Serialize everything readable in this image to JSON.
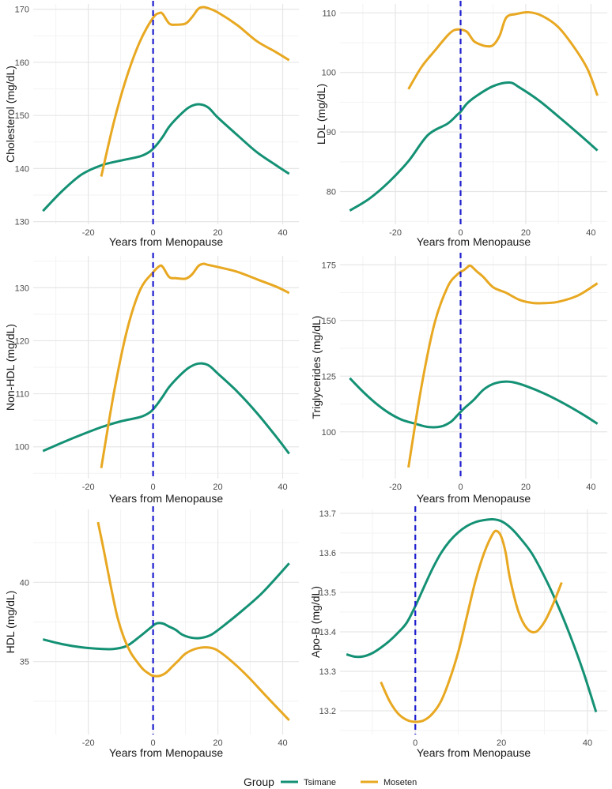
{
  "colors": {
    "Tsimane": "#149174",
    "Moseten": "#E8A821",
    "menopause_line": "#1f1fcf",
    "grid_major": "#e6e6e6",
    "grid_minor": "#f3f3f3"
  },
  "legend": {
    "title": "Group",
    "items": [
      "Tsimane",
      "Moseten"
    ],
    "position": "bottom"
  },
  "chart_data": [
    {
      "type": "line",
      "title": "",
      "xlabel": "Years from Menopause",
      "ylabel": "Cholesterol (mg/dL)",
      "xlim": [
        -37,
        45
      ],
      "ylim": [
        129.5,
        171
      ],
      "xticks": [
        -20,
        0,
        20,
        40
      ],
      "xtick_labels": [
        "-20",
        "0",
        "20",
        "40"
      ],
      "yticks": [
        130,
        140,
        150,
        160,
        170
      ],
      "ytick_labels": [
        "130",
        "140",
        "150",
        "160",
        "170"
      ],
      "vline_x": 0,
      "grid": true,
      "series": [
        {
          "name": "Tsimane",
          "x": [
            -34,
            -28,
            -22,
            -16,
            -10,
            -4,
            -1,
            1,
            3,
            5,
            8,
            11,
            14,
            17,
            20,
            26,
            32,
            38,
            42
          ],
          "y": [
            132,
            135.8,
            138.9,
            140.6,
            141.5,
            142.3,
            143.2,
            144.4,
            146,
            147.9,
            149.9,
            151.5,
            152.1,
            151.5,
            149.6,
            146.3,
            143.1,
            140.6,
            139
          ]
        },
        {
          "name": "Moseten",
          "x": [
            -16,
            -12,
            -8,
            -4,
            0,
            2,
            3,
            5,
            7,
            10,
            12,
            14,
            15.5,
            17,
            20,
            26,
            32,
            38,
            42
          ],
          "y": [
            138.5,
            149,
            157.5,
            164,
            168.4,
            169.3,
            169.1,
            167.3,
            167.1,
            167.3,
            168.5,
            170.1,
            170.4,
            170.2,
            169.4,
            167,
            164,
            161.9,
            160.4
          ]
        }
      ]
    },
    {
      "type": "line",
      "title": "",
      "xlabel": "Years from Menopause",
      "ylabel": "LDL (mg/dL)",
      "xlim": [
        -37,
        45
      ],
      "ylim": [
        74.5,
        111.5
      ],
      "xticks": [
        -20,
        0,
        20,
        40
      ],
      "xtick_labels": [
        "-20",
        "0",
        "20",
        "40"
      ],
      "yticks": [
        80,
        90,
        100,
        110
      ],
      "ytick_labels": [
        "80",
        "90",
        "100",
        "110"
      ],
      "vline_x": 0,
      "grid": true,
      "series": [
        {
          "name": "Tsimane",
          "x": [
            -34,
            -28,
            -22,
            -16,
            -10,
            -4,
            -1,
            0,
            2,
            5,
            10,
            15,
            18,
            24,
            30,
            36,
            42
          ],
          "y": [
            76.8,
            78.8,
            81.6,
            85.1,
            89.5,
            91.4,
            92.9,
            93.4,
            94.8,
            96.1,
            97.7,
            98.3,
            97.5,
            95.3,
            92.6,
            89.8,
            86.9
          ]
        },
        {
          "name": "Moseten",
          "x": [
            -16,
            -12,
            -8,
            -4,
            -2,
            0,
            2,
            4,
            6,
            8,
            10,
            12,
            14,
            17,
            21,
            25,
            30,
            35,
            39,
            42
          ],
          "y": [
            97.2,
            100.9,
            103.6,
            106.2,
            107.1,
            107.2,
            106.8,
            105.3,
            104.7,
            104.4,
            104.6,
            106.2,
            109.2,
            109.8,
            110.1,
            109.5,
            107.6,
            104.1,
            100.5,
            96.1
          ]
        }
      ]
    },
    {
      "type": "line",
      "title": "",
      "xlabel": "Years from Menopause",
      "ylabel": "Non-HDL (mg/dL)",
      "xlim": [
        -37,
        45
      ],
      "ylim": [
        94,
        136
      ],
      "xticks": [
        -20,
        0,
        20,
        40
      ],
      "xtick_labels": [
        "-20",
        "0",
        "20",
        "40"
      ],
      "yticks": [
        100,
        110,
        120,
        130
      ],
      "ytick_labels": [
        "100",
        "110",
        "120",
        "130"
      ],
      "vline_x": 0,
      "grid": true,
      "series": [
        {
          "name": "Tsimane",
          "x": [
            -34,
            -28,
            -22,
            -16,
            -10,
            -4,
            -1,
            1,
            3,
            5,
            8,
            11,
            14,
            17,
            20,
            26,
            32,
            38,
            42
          ],
          "y": [
            99.2,
            100.8,
            102.3,
            103.7,
            104.8,
            105.6,
            106.5,
            107.8,
            109.5,
            111.3,
            113.3,
            114.9,
            115.7,
            115.4,
            113.8,
            110.4,
            106.4,
            101.9,
            98.7
          ]
        },
        {
          "name": "Moseten",
          "x": [
            -16,
            -12,
            -8,
            -4,
            0,
            2,
            3,
            5,
            7,
            10,
            12,
            14,
            15.5,
            17,
            20,
            26,
            32,
            38,
            42
          ],
          "y": [
            96,
            110.5,
            122.1,
            129.6,
            132.9,
            134.1,
            133.9,
            132,
            131.8,
            131.7,
            132.5,
            134.1,
            134.5,
            134.3,
            133.9,
            133,
            131.6,
            130.2,
            129
          ]
        }
      ]
    },
    {
      "type": "line",
      "title": "",
      "xlabel": "Years from Menopause",
      "ylabel": "Triglycerides (mg/dL)",
      "xlim": [
        -37,
        45
      ],
      "ylim": [
        79,
        179
      ],
      "xticks": [
        -20,
        0,
        20,
        40
      ],
      "xtick_labels": [
        "-20",
        "0",
        "20",
        "40"
      ],
      "yticks": [
        100,
        125,
        150,
        175
      ],
      "ytick_labels": [
        "100",
        "125",
        "150",
        "175"
      ],
      "vline_x": 0,
      "grid": true,
      "series": [
        {
          "name": "Tsimane",
          "x": [
            -34,
            -30,
            -26,
            -22,
            -18,
            -14,
            -10,
            -6,
            -3,
            -1,
            1,
            4,
            7,
            10,
            13,
            16,
            20,
            26,
            32,
            38,
            42
          ],
          "y": [
            124.1,
            118.1,
            112.8,
            108.5,
            105.4,
            103.7,
            102.2,
            102.4,
            104.5,
            107.4,
            110.4,
            114.3,
            118.9,
            121.5,
            122.5,
            122.3,
            120.6,
            117,
            112.5,
            107.4,
            103.6
          ]
        },
        {
          "name": "Moseten",
          "x": [
            -16,
            -12,
            -8,
            -4,
            -1,
            1,
            2,
            3,
            5,
            7,
            10,
            14,
            18,
            22,
            26,
            30,
            36,
            42
          ],
          "y": [
            84,
            120.4,
            148.7,
            165,
            170.7,
            172.6,
            173.8,
            174.6,
            172,
            169.5,
            164.9,
            162.4,
            159.3,
            157.9,
            157.8,
            158.4,
            161.2,
            166.7
          ]
        }
      ]
    },
    {
      "type": "line",
      "title": "",
      "xlabel": "Years from Menopause",
      "ylabel": "HDL (mg/dL)",
      "xlim": [
        -37,
        45
      ],
      "ylim": [
        30.4,
        44.6
      ],
      "xticks": [
        -20,
        0,
        20,
        40
      ],
      "xtick_labels": [
        "-20",
        "0",
        "20",
        "40"
      ],
      "yticks": [
        35,
        40
      ],
      "ytick_labels": [
        "35",
        "40"
      ],
      "vline_x": 0,
      "grid": true,
      "series": [
        {
          "name": "Tsimane",
          "x": [
            -34,
            -28,
            -22,
            -16,
            -12,
            -8,
            -4,
            -1,
            1,
            3,
            5,
            7,
            9,
            12,
            15,
            18,
            22,
            28,
            34,
            42
          ],
          "y": [
            36.4,
            36.1,
            35.9,
            35.8,
            35.8,
            36,
            36.6,
            37.1,
            37.4,
            37.4,
            37.2,
            37,
            36.7,
            36.5,
            36.5,
            36.7,
            37.3,
            38.3,
            39.4,
            41.2
          ]
        },
        {
          "name": "Moseten",
          "x": [
            -17,
            -15,
            -13,
            -11,
            -9,
            -7,
            -5,
            -3,
            -1,
            0,
            2,
            4,
            6,
            8,
            10,
            13,
            16,
            19,
            22,
            26,
            30,
            35,
            42
          ],
          "y": [
            43.8,
            41.8,
            39.7,
            37.8,
            36.5,
            35.6,
            35,
            34.5,
            34.2,
            34.1,
            34.1,
            34.3,
            34.7,
            35.1,
            35.5,
            35.8,
            35.9,
            35.8,
            35.4,
            34.7,
            33.9,
            32.8,
            31.3
          ]
        }
      ]
    },
    {
      "type": "line",
      "title": "",
      "xlabel": "Years from Menopause",
      "ylabel": "Apo-B (mg/dL)",
      "xlim": [
        -17.5,
        44.6
      ],
      "ylim": [
        13.14,
        13.71
      ],
      "xticks": [
        0,
        20,
        40
      ],
      "xtick_labels": [
        "0",
        "20",
        "40"
      ],
      "yticks": [
        13.2,
        13.3,
        13.4,
        13.5,
        13.6,
        13.7
      ],
      "ytick_labels": [
        "13.2",
        "13.3",
        "13.4",
        "13.5",
        "13.6",
        "13.7"
      ],
      "vline_x": 0,
      "grid": true,
      "series": [
        {
          "name": "Tsimane",
          "x": [
            -16,
            -14,
            -12,
            -10,
            -8,
            -6,
            -4,
            -2,
            0,
            2,
            4,
            6,
            8,
            10,
            12,
            14,
            16,
            18,
            20,
            22,
            24,
            27,
            30,
            33,
            36,
            39,
            42
          ],
          "y": [
            13.343,
            13.337,
            13.338,
            13.346,
            13.36,
            13.377,
            13.398,
            13.423,
            13.465,
            13.513,
            13.56,
            13.6,
            13.63,
            13.652,
            13.668,
            13.678,
            13.683,
            13.685,
            13.68,
            13.665,
            13.642,
            13.6,
            13.54,
            13.47,
            13.39,
            13.3,
            13.197
          ]
        },
        {
          "name": "Moseten",
          "x": [
            -8,
            -6,
            -4,
            -2,
            0,
            2,
            4,
            6,
            8,
            10,
            12,
            14,
            16,
            18,
            19,
            20,
            21,
            22,
            24,
            26,
            28,
            30,
            32,
            34
          ],
          "y": [
            13.273,
            13.225,
            13.193,
            13.177,
            13.172,
            13.176,
            13.193,
            13.225,
            13.28,
            13.35,
            13.44,
            13.53,
            13.6,
            13.648,
            13.655,
            13.64,
            13.6,
            13.535,
            13.45,
            13.408,
            13.4,
            13.425,
            13.47,
            13.525
          ]
        }
      ]
    }
  ]
}
